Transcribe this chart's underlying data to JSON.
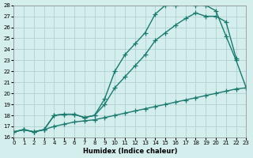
{
  "xlabel": "Humidex (Indice chaleur)",
  "xlim": [
    0,
    23
  ],
  "ylim": [
    16,
    28
  ],
  "yticks": [
    16,
    17,
    18,
    19,
    20,
    21,
    22,
    23,
    24,
    25,
    26,
    27,
    28
  ],
  "xticks": [
    0,
    1,
    2,
    3,
    4,
    5,
    6,
    7,
    8,
    9,
    10,
    11,
    12,
    13,
    14,
    15,
    16,
    17,
    18,
    19,
    20,
    21,
    22,
    23
  ],
  "bg_color": "#d4eeee",
  "line_color": "#1a7a6e",
  "line_width": 1.0,
  "marker": "+",
  "marker_size": 4,
  "curve1_x": [
    0,
    1,
    2,
    3,
    4,
    5,
    6,
    7,
    8,
    9,
    10,
    11,
    12,
    13,
    14,
    15,
    16,
    17,
    18,
    19,
    20,
    21,
    22,
    23
  ],
  "curve1_y": [
    16.5,
    16.7,
    16.5,
    16.7,
    18.0,
    18.1,
    18.1,
    17.8,
    18.0,
    19.5,
    22.0,
    23.5,
    24.5,
    25.5,
    27.2,
    28.0,
    28.0,
    28.2,
    28.0,
    28.0,
    27.5,
    25.2,
    23.0,
    20.5
  ],
  "curve2_x": [
    0,
    1,
    2,
    3,
    4,
    5,
    6,
    7,
    8,
    9,
    10,
    11,
    12,
    13,
    14,
    15,
    16,
    17,
    18,
    19,
    20,
    21,
    22
  ],
  "curve2_y": [
    16.5,
    16.7,
    16.5,
    16.7,
    18.0,
    18.1,
    18.1,
    17.8,
    18.0,
    19.0,
    20.5,
    21.5,
    22.5,
    23.5,
    24.8,
    25.5,
    26.2,
    26.8,
    27.3,
    27.0,
    27.0,
    26.5,
    23.2
  ],
  "curve3_x": [
    0,
    1,
    2,
    3,
    4,
    5,
    6,
    7,
    8,
    9,
    10,
    11,
    12,
    13,
    14,
    15,
    16,
    17,
    18,
    19,
    20,
    21,
    22,
    23
  ],
  "curve3_y": [
    16.5,
    16.7,
    16.5,
    16.7,
    17.0,
    17.2,
    17.4,
    17.5,
    17.6,
    17.8,
    18.0,
    18.2,
    18.4,
    18.6,
    18.8,
    19.0,
    19.2,
    19.4,
    19.6,
    19.8,
    20.0,
    20.2,
    20.4,
    20.5
  ]
}
